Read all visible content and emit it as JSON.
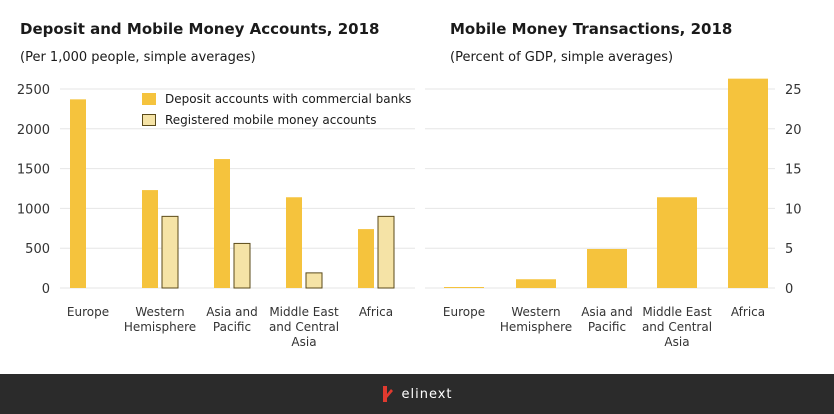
{
  "colors": {
    "deposit": "#f5c33d",
    "mobile_fill": "#f5e3a6",
    "mobile_stroke": "#5a4a1a",
    "grid": "#e6e6e6",
    "text": "#333333",
    "footer_bg": "#2b2b2b",
    "logo_red": "#e03a2f"
  },
  "footer": {
    "brand": "elinext"
  },
  "chart_data": [
    {
      "type": "bar",
      "title": "Deposit and Mobile Money Accounts, 2018",
      "subtitle": "(Per 1,000 people, simple averages)",
      "categories": [
        [
          "Europe"
        ],
        [
          "Western",
          "Hemisphere"
        ],
        [
          "Asia and",
          "Pacific"
        ],
        [
          "Middle East",
          "and Central",
          "Asia"
        ],
        [
          "Africa"
        ]
      ],
      "series": [
        {
          "name": "Deposit accounts with commercial banks",
          "values": [
            2370,
            1230,
            1620,
            1140,
            740
          ]
        },
        {
          "name": "Registered mobile money accounts",
          "values": [
            null,
            900,
            560,
            190,
            900
          ]
        }
      ],
      "ylim": [
        0,
        2500
      ],
      "yticks": [
        0,
        500,
        1000,
        1500,
        2000,
        2500
      ],
      "ytick_labels": [
        "0",
        "500",
        "1000",
        "1500",
        "2000",
        "2500"
      ],
      "axis_side": "left",
      "grid": true,
      "legend": "top"
    },
    {
      "type": "bar",
      "title": "Mobile Money Transactions, 2018",
      "subtitle": "(Percent of GDP, simple averages)",
      "categories": [
        [
          "Europe"
        ],
        [
          "Western",
          "Hemisphere"
        ],
        [
          "Asia and",
          "Pacific"
        ],
        [
          "Middle East",
          "and Central",
          "Asia"
        ],
        [
          "Africa"
        ]
      ],
      "series": [
        {
          "name": "",
          "values": [
            0.05,
            1.1,
            4.9,
            11.4,
            26.3
          ]
        }
      ],
      "ylim": [
        0,
        25
      ],
      "yticks": [
        0,
        5,
        10,
        15,
        20,
        25
      ],
      "ytick_labels": [
        "0",
        "5",
        "10",
        "15",
        "20",
        "25"
      ],
      "axis_side": "right",
      "grid": true
    }
  ]
}
